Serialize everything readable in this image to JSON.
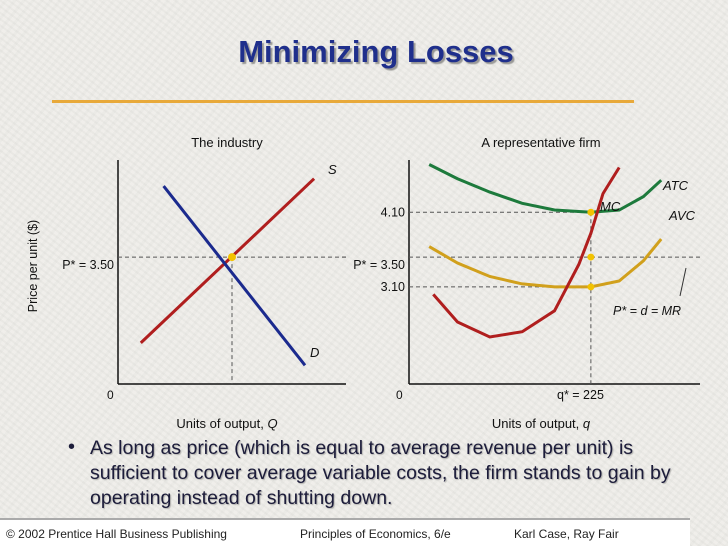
{
  "slide": {
    "title": "Minimizing Losses",
    "bullet": "As long as price (which is equal to average revenue per unit) is sufficient to cover average variable costs, the firm stands to gain by operating instead of shutting down."
  },
  "footer": {
    "left": "© 2002 Prentice Hall Business Publishing",
    "center": "Principles of Economics, 6/e",
    "right": "Karl Case, Ray Fair"
  },
  "colors": {
    "title": "#1f2f8c",
    "supply": "#b01e1e",
    "demand": "#1b2a8e",
    "mc": "#b01e1e",
    "atc": "#1d7a3c",
    "avc": "#d1a01c",
    "equilibrium_dot": "#f2c200",
    "rule": "#e8a93a"
  },
  "chart_data": [
    {
      "type": "line",
      "title": "The industry",
      "ylabel": "Price per unit ($)",
      "xlabel_text": "Units of output, ",
      "xlabel_var": "Q",
      "origin_label": "0",
      "price_label": "P* = 3.50",
      "equilibrium": {
        "x": 0.5,
        "y": 3.5
      },
      "ylim": [
        1.8,
        4.8
      ],
      "xlim": [
        0,
        1
      ],
      "series": [
        {
          "name": "S",
          "x": [
            0.1,
            0.86
          ],
          "y": [
            2.35,
            4.55
          ]
        },
        {
          "name": "D",
          "x": [
            0.2,
            0.82
          ],
          "y": [
            4.45,
            2.05
          ]
        }
      ]
    },
    {
      "type": "line",
      "title": "A representative firm",
      "xlabel_text": "Units of output, ",
      "xlabel_var": "q",
      "origin_label": "0",
      "qstar_label": "q* = 225",
      "q_star": 225,
      "price_label": "P* = 3.50",
      "mr_label": "P* = d = MR",
      "ytick_labels": [
        "4.10",
        "3.10"
      ],
      "ylim": [
        1.8,
        4.8
      ],
      "xlim": [
        0,
        360
      ],
      "points": [
        {
          "x": 225,
          "y": 4.1
        },
        {
          "x": 225,
          "y": 3.5
        },
        {
          "x": 225,
          "y": 3.1
        }
      ],
      "series": [
        {
          "name": "ATC",
          "x": [
            25,
            60,
            100,
            140,
            180,
            225,
            260,
            290,
            312
          ],
          "y": [
            4.74,
            4.55,
            4.37,
            4.22,
            4.13,
            4.1,
            4.13,
            4.31,
            4.53
          ]
        },
        {
          "name": "AVC",
          "x": [
            25,
            60,
            100,
            140,
            180,
            225,
            260,
            290,
            312
          ],
          "y": [
            3.64,
            3.42,
            3.24,
            3.14,
            3.1,
            3.1,
            3.18,
            3.45,
            3.74
          ]
        },
        {
          "name": "MC",
          "x": [
            30,
            60,
            100,
            140,
            180,
            210,
            225,
            240,
            260
          ],
          "y": [
            3.0,
            2.63,
            2.43,
            2.5,
            2.78,
            3.4,
            3.82,
            4.35,
            4.7
          ]
        }
      ]
    }
  ]
}
